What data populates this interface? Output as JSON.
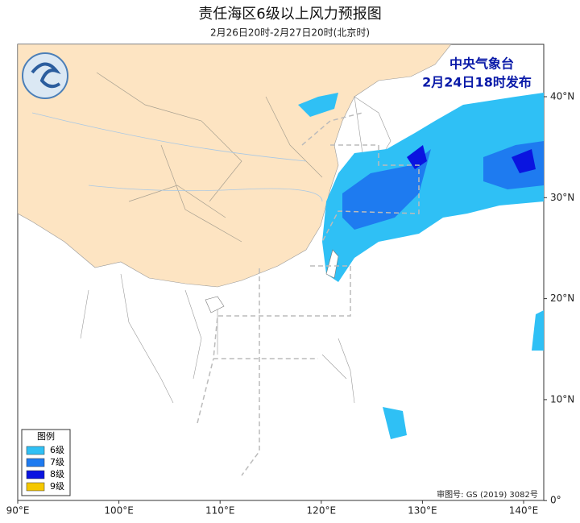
{
  "header": {
    "title": "责任海区6级以上风力预报图",
    "subtitle": "2月26日20时-2月27日20时(北京时)"
  },
  "issuer": {
    "name": "中央气象台",
    "time": "2月24日18时发布"
  },
  "legend": {
    "title": "图例",
    "items": [
      {
        "label": "6级",
        "color": "#2fc0f5"
      },
      {
        "label": "7级",
        "color": "#1e7bf0"
      },
      {
        "label": "8级",
        "color": "#0a14e0"
      },
      {
        "label": "9级",
        "color": "#f5c800"
      }
    ]
  },
  "axes": {
    "x_labels": [
      "90°E",
      "100°E",
      "110°E",
      "120°E",
      "130°E",
      "140°E"
    ],
    "y_labels": [
      "40°N",
      "30°N",
      "20°N",
      "10°N",
      "0°"
    ]
  },
  "approval": "审图号: GS (2019) 3082号"
}
